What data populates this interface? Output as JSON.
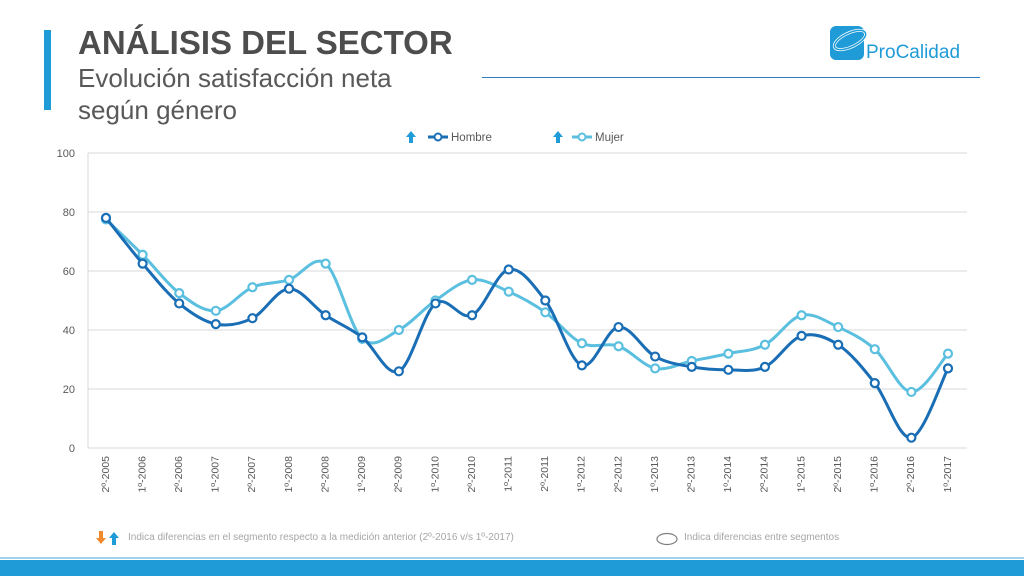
{
  "header": {
    "title": "ANÁLISIS DEL SECTOR",
    "subtitle": "Evolución satisfacción neta según género"
  },
  "logo": {
    "text_pro": "Pro",
    "text_calidad": "Calidad"
  },
  "colors": {
    "hombre": "#1a6eb5",
    "mujer": "#5bbfdf",
    "accent": "#1f9bd7",
    "up_arrow": "#1f9bd7",
    "down_arrow": "#f08a2c",
    "grid": "#d9d9d9",
    "axis_text": "#595959"
  },
  "footnotes": {
    "arrows_note": "Indica diferencias en el segmento respecto a la medición anterior (2º-2016 v/s  1º-2017)",
    "circle_note": "Indica diferencias entre segmentos"
  },
  "chart_data": {
    "type": "line",
    "title": "",
    "xlabel": "",
    "ylabel": "",
    "ylim": [
      0,
      100
    ],
    "yticks": [
      0,
      20,
      40,
      60,
      80,
      100
    ],
    "grid": true,
    "smooth": true,
    "legend_position": "top",
    "categories": [
      "2º-2005",
      "1º-2006",
      "2º-2006",
      "1º-2007",
      "2º-2007",
      "1º-2008",
      "2º-2008",
      "1º-2009",
      "2º-2009",
      "1º-2010",
      "2º-2010",
      "1º-2011",
      "2º-2011",
      "1º-2012",
      "2º-2012",
      "1º-2013",
      "2º-2013",
      "1º-2014",
      "2º-2014",
      "1º-2015",
      "2º-2015",
      "1º-2016",
      "2º-2016",
      "1º-2017"
    ],
    "series": [
      {
        "name": "Hombre",
        "marker": "up-arrow",
        "values": [
          78,
          62.5,
          49,
          42,
          44,
          54,
          45,
          37.5,
          26,
          49,
          45,
          60.5,
          50,
          28,
          41,
          31,
          27.5,
          26.5,
          27.5,
          38,
          35,
          22,
          3.5,
          27
        ]
      },
      {
        "name": "Mujer",
        "marker": "up-arrow",
        "values": [
          77.5,
          65.5,
          52.5,
          46.5,
          54.5,
          57,
          62.5,
          37,
          40,
          50,
          57,
          53,
          46,
          35.5,
          34.5,
          27,
          29.5,
          32,
          35,
          45,
          41,
          33.5,
          19,
          32
        ]
      }
    ]
  }
}
